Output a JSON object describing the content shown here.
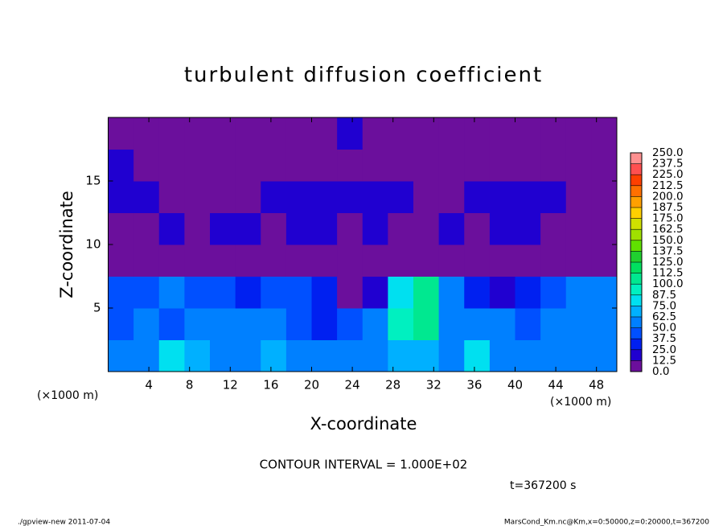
{
  "chart_data": {
    "type": "heatmap",
    "title": "turbulent diffusion coefficient",
    "xlabel": "X-coordinate",
    "ylabel": "Z-coordinate",
    "x_unit": "(×1000 m)",
    "xlim": [
      0,
      50
    ],
    "ylim": [
      0,
      20
    ],
    "xticks": [
      4,
      8,
      12,
      16,
      20,
      24,
      28,
      32,
      36,
      40,
      44,
      48
    ],
    "yticks": [
      5,
      10,
      15
    ],
    "z": [
      [
        55,
        60,
        75,
        70,
        55,
        60,
        65,
        55,
        50,
        60,
        55,
        70,
        65,
        60,
        75,
        55,
        50,
        60,
        55,
        50
      ],
      [
        45,
        55,
        40,
        60,
        55,
        50,
        60,
        45,
        35,
        40,
        50,
        95,
        100,
        50,
        60,
        55,
        45,
        55,
        60,
        55
      ],
      [
        40,
        45,
        50,
        40,
        45,
        35,
        45,
        40,
        25,
        10,
        20,
        85,
        110,
        60,
        30,
        20,
        25,
        45,
        50,
        55
      ],
      [
        5,
        5,
        5,
        5,
        5,
        5,
        5,
        5,
        5,
        5,
        5,
        5,
        5,
        5,
        5,
        5,
        5,
        5,
        5,
        5
      ],
      [
        10,
        5,
        15,
        5,
        15,
        15,
        10,
        20,
        15,
        10,
        15,
        10,
        5,
        15,
        10,
        20,
        15,
        10,
        5,
        5
      ],
      [
        20,
        15,
        10,
        5,
        10,
        10,
        15,
        15,
        20,
        15,
        20,
        15,
        10,
        10,
        15,
        20,
        15,
        15,
        10,
        5
      ],
      [
        15,
        5,
        5,
        5,
        5,
        5,
        5,
        5,
        5,
        5,
        5,
        5,
        5,
        5,
        5,
        5,
        5,
        5,
        5,
        5
      ],
      [
        5,
        5,
        5,
        5,
        5,
        5,
        5,
        5,
        5,
        20,
        5,
        5,
        5,
        5,
        5,
        5,
        5,
        5,
        5,
        5
      ]
    ],
    "colorbar": {
      "ticks": [
        {
          "value": 0,
          "label": "0.0"
        },
        {
          "value": 12.5,
          "label": "12.5"
        },
        {
          "value": 25,
          "label": "25.0"
        },
        {
          "value": 37.5,
          "label": "37.5"
        },
        {
          "value": 50,
          "label": "50.0"
        },
        {
          "value": 62.5,
          "label": "62.5"
        },
        {
          "value": 75,
          "label": "75.0"
        },
        {
          "value": 87.5,
          "label": "87.5"
        },
        {
          "value": 100,
          "label": "100.0"
        },
        {
          "value": 112.5,
          "label": "112.5"
        },
        {
          "value": 125,
          "label": "125.0"
        },
        {
          "value": 137.5,
          "label": "137.5"
        },
        {
          "value": 150,
          "label": "150.0"
        },
        {
          "value": 162.5,
          "label": "162.5"
        },
        {
          "value": 175,
          "label": "175.0"
        },
        {
          "value": 187.5,
          "label": "187.5"
        },
        {
          "value": 200,
          "label": "200.0"
        },
        {
          "value": 212.5,
          "label": "212.5"
        },
        {
          "value": 225,
          "label": "225.0"
        },
        {
          "value": 237.5,
          "label": "237.5"
        },
        {
          "value": 250,
          "label": "250.0"
        }
      ],
      "colors": [
        "#6b0f9c",
        "#2000d0",
        "#0020f0",
        "#0050ff",
        "#0080ff",
        "#00b0ff",
        "#00e0f0",
        "#00f0c0",
        "#00e890",
        "#00e060",
        "#20d030",
        "#60e000",
        "#a0e000",
        "#d0e000",
        "#ffd000",
        "#ffa000",
        "#ff7000",
        "#ff4000",
        "#ff5050",
        "#ff9090"
      ]
    },
    "contour_note": "CONTOUR INTERVAL = 1.000E+02",
    "time_note": "t=367200 s",
    "footer_left": "./gpview-new  2011-07-04",
    "footer_right": "MarsCond_Km.nc@Km,x=0:50000,z=0:20000,t=367200"
  }
}
